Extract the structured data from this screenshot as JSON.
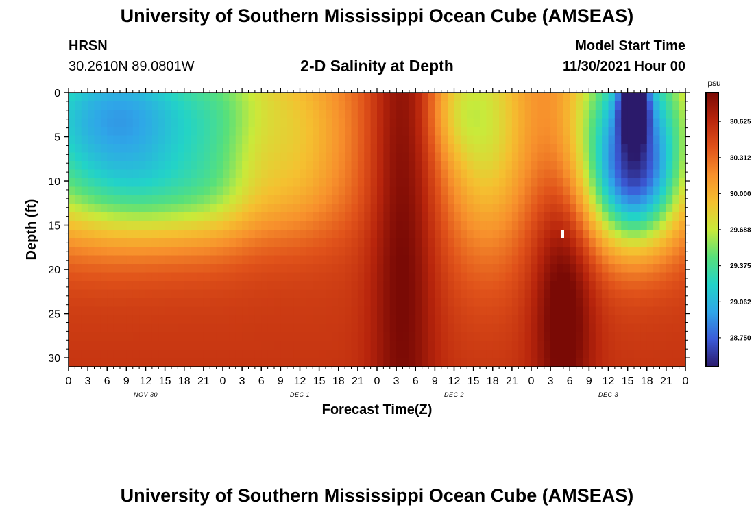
{
  "header": {
    "title": "University of Southern Mississippi Ocean Cube (AMSEAS)",
    "station": "HRSN",
    "coords": "30.2610N  89.0801W",
    "plot_title": "2-D Salinity at Depth",
    "start_label": "Model Start Time",
    "start_value": "11/30/2021 Hour 00"
  },
  "footer": {
    "title": "University of Southern Mississippi Ocean Cube (AMSEAS)"
  },
  "chart_data": {
    "type": "heatmap",
    "title": "2-D Salinity at Depth",
    "xlabel": "Forecast Time(Z)",
    "ylabel": "Depth (ft)",
    "x_ticks": [
      "0",
      "3",
      "6",
      "9",
      "12",
      "15",
      "18",
      "21",
      "0",
      "3",
      "6",
      "9",
      "12",
      "15",
      "18",
      "21",
      "0",
      "3",
      "6",
      "9",
      "12",
      "15",
      "18",
      "21",
      "0",
      "3",
      "6",
      "9",
      "12",
      "15",
      "18",
      "21",
      "0"
    ],
    "x_range": [
      0,
      96
    ],
    "x_unit": "hours since model start",
    "day_labels": [
      {
        "hour": 12,
        "label": "NOV 30"
      },
      {
        "hour": 36,
        "label": "DEC 1"
      },
      {
        "hour": 60,
        "label": "DEC 2"
      },
      {
        "hour": 84,
        "label": "DEC 3"
      }
    ],
    "y_ticks": [
      0,
      5,
      10,
      15,
      20,
      25,
      30
    ],
    "y_range": [
      0,
      31
    ],
    "y_unit": "ft (depth, increasing downward)",
    "colorbar": {
      "unit": "psu",
      "min": 28.5,
      "max": 30.875,
      "tick_values": [
        30.625,
        30.312,
        30.0,
        29.688,
        29.375,
        29.062,
        28.75
      ],
      "tick_labels": [
        "30.625",
        "30.312",
        "30.000",
        "29.688",
        "29.375",
        "29.062",
        "28.750"
      ],
      "colormap": [
        "#2b1a6b",
        "#3b5bd8",
        "#2fa6e8",
        "#22d3c8",
        "#58e07a",
        "#c9ea3a",
        "#f5c030",
        "#f7902c",
        "#e0521a",
        "#b8250c",
        "#7a0a05"
      ]
    },
    "field": {
      "description": "salinity (psu) approximated from the figure",
      "base_surface": 30.45,
      "base_deep": 30.55,
      "features": [
        {
          "kind": "low",
          "t": 5,
          "z": 3,
          "st": 14,
          "sz": 8,
          "amp": -1.15
        },
        {
          "kind": "low",
          "t": 12,
          "z": 2,
          "st": 10,
          "sz": 6,
          "amp": -0.4
        },
        {
          "kind": "low",
          "t": 16,
          "z": 12,
          "st": 14,
          "sz": 4,
          "amp": -0.5
        },
        {
          "kind": "low",
          "t": 25,
          "z": 3,
          "st": 5,
          "sz": 8,
          "amp": -0.3
        },
        {
          "kind": "high",
          "t": 29,
          "z": 8,
          "st": 4,
          "sz": 6,
          "amp": 0.2
        },
        {
          "kind": "low",
          "t": 35,
          "z": 4,
          "st": 7,
          "sz": 7,
          "amp": -0.45
        },
        {
          "kind": "low",
          "t": 60,
          "z": 2,
          "st": 3,
          "sz": 4,
          "amp": -0.25
        },
        {
          "kind": "high",
          "t": 52,
          "z": 10,
          "st": 3.5,
          "sz": 30,
          "amp": 0.4
        },
        {
          "kind": "low",
          "t": 65,
          "z": 4,
          "st": 5,
          "sz": 10,
          "amp": -0.7
        },
        {
          "kind": "high",
          "t": 77,
          "z": 24,
          "st": 3.2,
          "sz": 10,
          "amp": 0.45
        },
        {
          "kind": "low",
          "t": 88,
          "z": 3,
          "st": 7,
          "sz": 8,
          "amp": -1.4
        },
        {
          "kind": "low",
          "t": 88,
          "z": 11,
          "st": 5,
          "sz": 5,
          "amp": -0.9
        },
        {
          "kind": "low",
          "t": 88,
          "z": 1.5,
          "st": 1.5,
          "sz": 2.5,
          "amp": -1.2
        }
      ]
    }
  },
  "icons": {
    "marker": "white-rect-marker"
  }
}
